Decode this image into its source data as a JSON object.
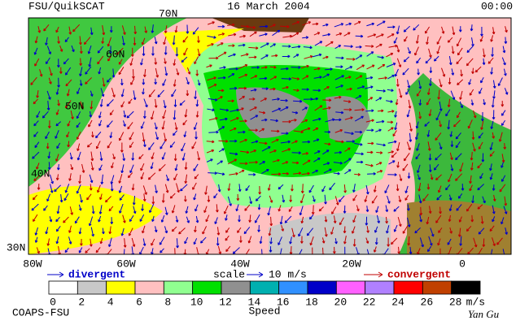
{
  "header": {
    "left": "FSU/QuikSCAT",
    "date": "16 March 2004",
    "time": "00:00"
  },
  "map": {
    "lat_labels": [
      "70N",
      "60N",
      "50N",
      "40N",
      "30N"
    ],
    "lon_labels": [
      "80W",
      "60W",
      "40W",
      "20W",
      "0"
    ]
  },
  "legend": {
    "divergent": "divergent",
    "scale": "scale",
    "scale_value": "10 m/s",
    "convergent": "convergent"
  },
  "colorbar": {
    "colors": [
      "#ffffff",
      "#c8c8c8",
      "#ffff00",
      "#ffc0c0",
      "#90ff90",
      "#00e000",
      "#909090",
      "#00b0b0",
      "#3090ff",
      "#0000c8",
      "#ff60ff",
      "#b080ff",
      "#ff0000",
      "#c04000",
      "#000000"
    ],
    "ticks": [
      "0",
      "2",
      "4",
      "6",
      "8",
      "10",
      "12",
      "14",
      "16",
      "18",
      "20",
      "22",
      "24",
      "26",
      "28"
    ],
    "unit": "m/s",
    "title": "Speed"
  },
  "footer": {
    "left": "COAPS-FSU",
    "right": "Yan Gu"
  }
}
